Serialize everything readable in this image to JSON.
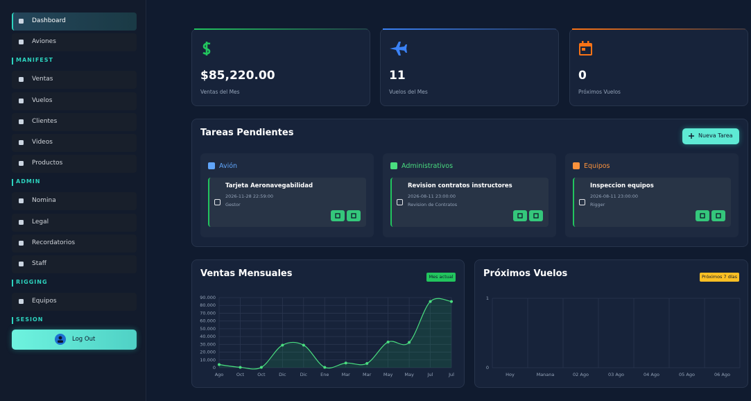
{
  "nav": [
    {
      "items": [
        "Dashboard",
        "Aviones"
      ]
    },
    {
      "section": "MANIFEST",
      "items": [
        "Ventas",
        "Vuelos",
        "Clientes",
        "Videos",
        "Productos"
      ]
    },
    {
      "section": "ADMIN",
      "items": [
        "Nomina",
        "Legal",
        "Recordatorios",
        "Staff"
      ]
    },
    {
      "section": "RIGGING",
      "items": [
        "Equipos"
      ]
    },
    {
      "section": "SESION",
      "items": []
    }
  ],
  "logout": "Log Out",
  "stats": [
    {
      "value": "$85,220.00",
      "label": "Ventas del Mes",
      "color": "#22c55e"
    },
    {
      "value": "11",
      "label": "Vuelos del Mes",
      "color": "#3b82f6"
    },
    {
      "value": "0",
      "label": "Próximos Vuelos",
      "color": "#f97316"
    }
  ],
  "tasks": {
    "title": "Tareas Pendientes",
    "button": "Nueva Tarea",
    "columns": [
      {
        "name": "Avión",
        "color": "#60a5fa",
        "tasks": [
          {
            "title": "Tarjeta Aeronavegabilidad",
            "date": "2026-11-28 22:59:00",
            "meta": "Gestor"
          }
        ]
      },
      {
        "name": "Administrativos",
        "color": "#4ade80",
        "tasks": [
          {
            "title": "Revision contratos instructores",
            "date": "2026-08-11 23:00:00",
            "meta": "Revision de Contratos"
          }
        ]
      },
      {
        "name": "Equipos",
        "color": "#fb923c",
        "tasks": [
          {
            "title": "Inspeccion equipos",
            "date": "2026-08-11 23:00:00",
            "meta": "Rigger"
          }
        ]
      }
    ]
  },
  "chart_data": [
    {
      "type": "line",
      "title": "Ventas Mensuales",
      "badge": "Mes actual",
      "color": "#4ade80",
      "categories": [
        "Ago",
        "Oct",
        "Oct",
        "Dic",
        "Dic",
        "Ene",
        "Mar",
        "Mar",
        "May",
        "May",
        "Jul",
        "Jul"
      ],
      "values": [
        4000,
        500,
        500,
        29000,
        29000,
        500,
        6000,
        5500,
        33000,
        32500,
        85000,
        85000
      ],
      "ylim": [
        0,
        90000
      ],
      "yticks": [
        0,
        {
          "value": 10000,
          "label": "10.000"
        },
        {
          "value": 20000,
          "label": "20.000"
        },
        {
          "value": 30000,
          "label": "30.000"
        },
        {
          "value": 40000,
          "label": "40.000"
        },
        {
          "value": 50000,
          "label": "50.000"
        },
        {
          "value": 60000,
          "label": "60.000"
        },
        {
          "value": 70000,
          "label": "70.000"
        },
        {
          "value": 80000,
          "label": "80.000"
        },
        {
          "value": 90000,
          "label": "90.000"
        }
      ],
      "grid": true
    },
    {
      "type": "bar",
      "title": "Próximos Vuelos",
      "badge": "Próximos 7 días",
      "color": "#22c55e",
      "categories": [
        "Hoy",
        "Manana",
        "02 Ago",
        "03 Ago",
        "04 Ago",
        "05 Ago",
        "06 Ago"
      ],
      "values": [
        0,
        0,
        0,
        0,
        0,
        0,
        0
      ],
      "ylim": [
        0,
        1
      ],
      "yticks": [
        0,
        1
      ],
      "grid": true
    }
  ]
}
